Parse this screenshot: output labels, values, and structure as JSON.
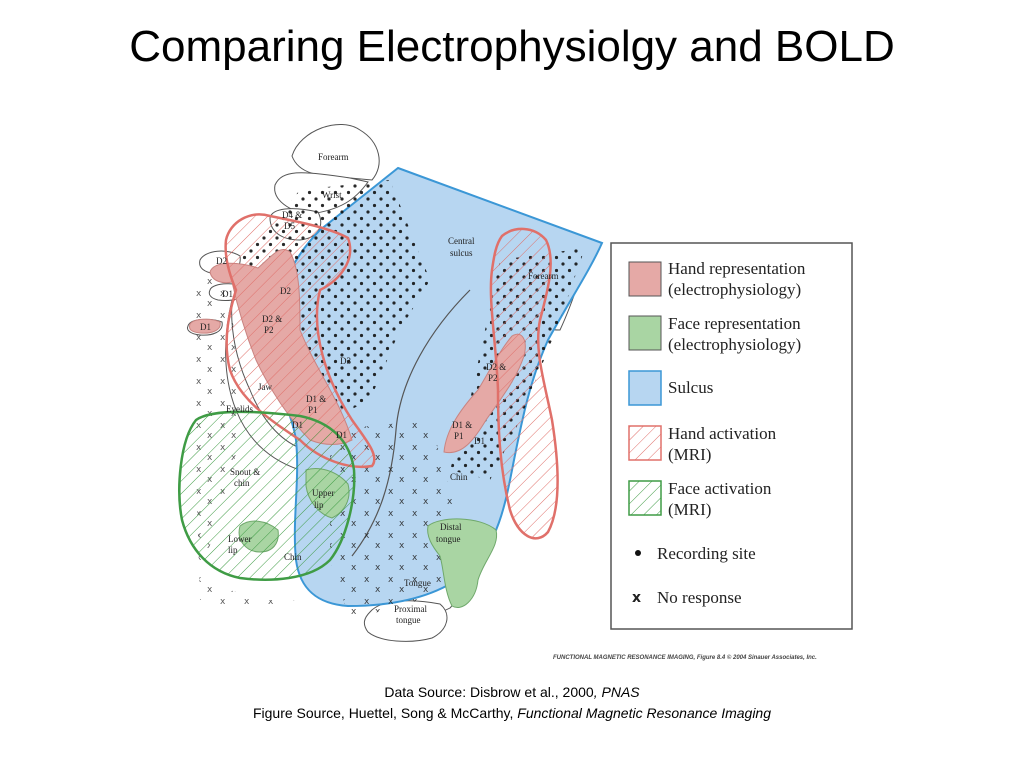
{
  "slide": {
    "title": "Comparing Electrophysiolgy and BOLD"
  },
  "figure": {
    "labels": {
      "forearm_left": "Forearm",
      "wrist": "Wrist",
      "d4d5_a": "D4 &",
      "d4d5_b": "D5",
      "d2_top": "D2",
      "d1_top": "D1",
      "d1_small": "D1",
      "d2_mid": "D2",
      "d2p2_a": "D2 &",
      "d2p2_b": "P2",
      "d3": "D3",
      "jaw": "Jaw",
      "eyelids": "Eyelids",
      "d1p1_a": "D1 &",
      "d1p1_b": "P1",
      "d1_lower": "D1",
      "d1_lower2": "D1",
      "snout_a": "Snout &",
      "snout_b": "chin",
      "upper_a": "Upper",
      "upper_b": "lip",
      "lower_a": "Lower",
      "lower_b": "lip",
      "chin_left": "Chin",
      "central_a": "Central",
      "central_b": "sulcus",
      "forearm_right": "Forearm",
      "d2p2_right_a": "D2 &",
      "d2p2_right_b": "P2",
      "d1p1_right_a": "D1 &",
      "d1p1_right_b": "P1",
      "d1_right": "D1",
      "chin_right": "Chin",
      "distal_a": "Distal",
      "distal_b": "tongue",
      "tongue": "Tongue",
      "proximal_a": "Proximal",
      "proximal_b": "tongue"
    },
    "legend": {
      "hand_rep_1": "Hand representation",
      "hand_rep_2": "(electrophysiology)",
      "face_rep_1": "Face representation",
      "face_rep_2": "(electrophysiology)",
      "sulcus": "Sulcus",
      "hand_act_1": "Hand activation",
      "hand_act_2": "(MRI)",
      "face_act_1": "Face activation",
      "face_act_2": "(MRI)",
      "recording": "Recording site",
      "no_response_marker": "x",
      "no_response": "No response"
    },
    "credit": "FUNCTIONAL MAGNETIC RESONANCE IMAGING, Figure 8.4 © 2004 Sinauer Associates, Inc.",
    "colors": {
      "hand_fill": "#e5a9a6",
      "hand_line": "#e0706a",
      "face_fill": "#a9d5a3",
      "face_line": "#3f9c45",
      "sulcus_fill": "#b7d6f1",
      "sulcus_line": "#3b97d6"
    }
  },
  "source": {
    "data_prefix": "Data Source: Disbrow et al., 2000",
    "data_journal": ", PNAS",
    "figure_prefix": "Figure Source, Huettel, Song & McCarthy,",
    "figure_book": " Functional Magnetic Resonance Imaging"
  }
}
